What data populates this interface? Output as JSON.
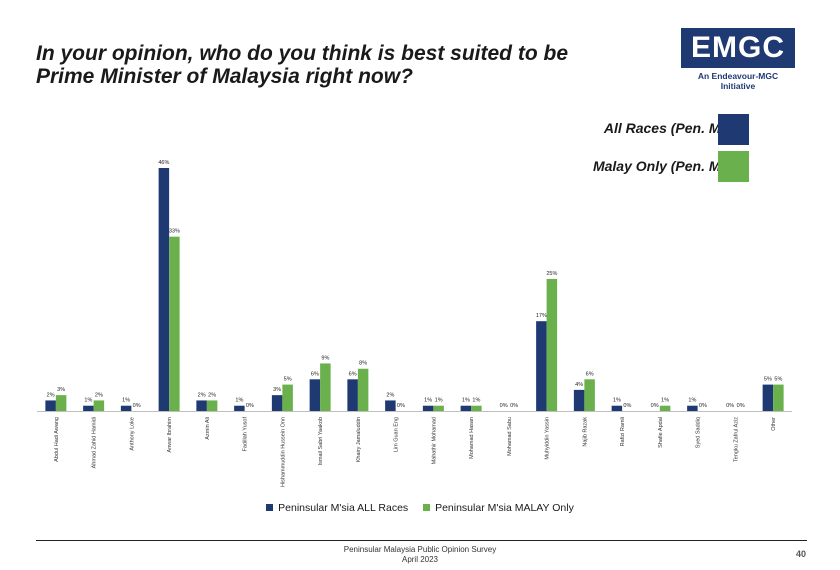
{
  "header": {
    "title_line1": "In your opinion, who do you think is best suited to be",
    "title_line2": "Prime Minister of Malaysia right now?"
  },
  "logo": {
    "text": "EMGC",
    "subtext": "An Endeavour-MGC Initiative"
  },
  "key_labels": {
    "all_races": "All Races (Pen. M'sia)",
    "malay_only": "Malay Only (Pen. M'sia)"
  },
  "colors": {
    "all_races": "#1f3a73",
    "malay_only": "#6ab04c"
  },
  "chart_data": {
    "type": "bar",
    "categories": [
      "Abdul Hadi Awang",
      "Ahmad Zahid Hamidi",
      "Anthony Loke",
      "Anwar Ibrahim",
      "Azmin Ali",
      "Fadillah Yusof",
      "Hishammuddin Hussein Onn",
      "Ismail Sabri Yaakob",
      "Khairy Jamaluddin",
      "Lim Guan Eng",
      "Mahathir Mohamad",
      "Mohamad Hasan",
      "Mohamad Sabu",
      "Muhyiddin Yassin",
      "Najib Razak",
      "Rafizi Ramli",
      "Shafie Apdal",
      "Syed Saddiq",
      "Tengku Zafrul Aziz",
      "Other"
    ],
    "series": [
      {
        "name": "Peninsular M'sia ALL Races",
        "values": [
          2,
          1,
          1,
          46,
          2,
          1,
          3,
          6,
          6,
          2,
          1,
          1,
          0,
          17,
          4,
          1,
          0,
          1,
          0,
          5
        ]
      },
      {
        "name": "Peninsular M'sia MALAY Only",
        "values": [
          3,
          2,
          0,
          33,
          2,
          0,
          5,
          9,
          8,
          0,
          1,
          1,
          0,
          25,
          6,
          0,
          1,
          0,
          0,
          5
        ]
      }
    ],
    "ylim": [
      0,
      46
    ],
    "data_labels": true,
    "label_suffix": "%",
    "legend_position": "bottom"
  },
  "footer": {
    "line1": "Peninsular Malaysia Public Opinion Survey",
    "line2": "April 2023",
    "page": "40"
  }
}
